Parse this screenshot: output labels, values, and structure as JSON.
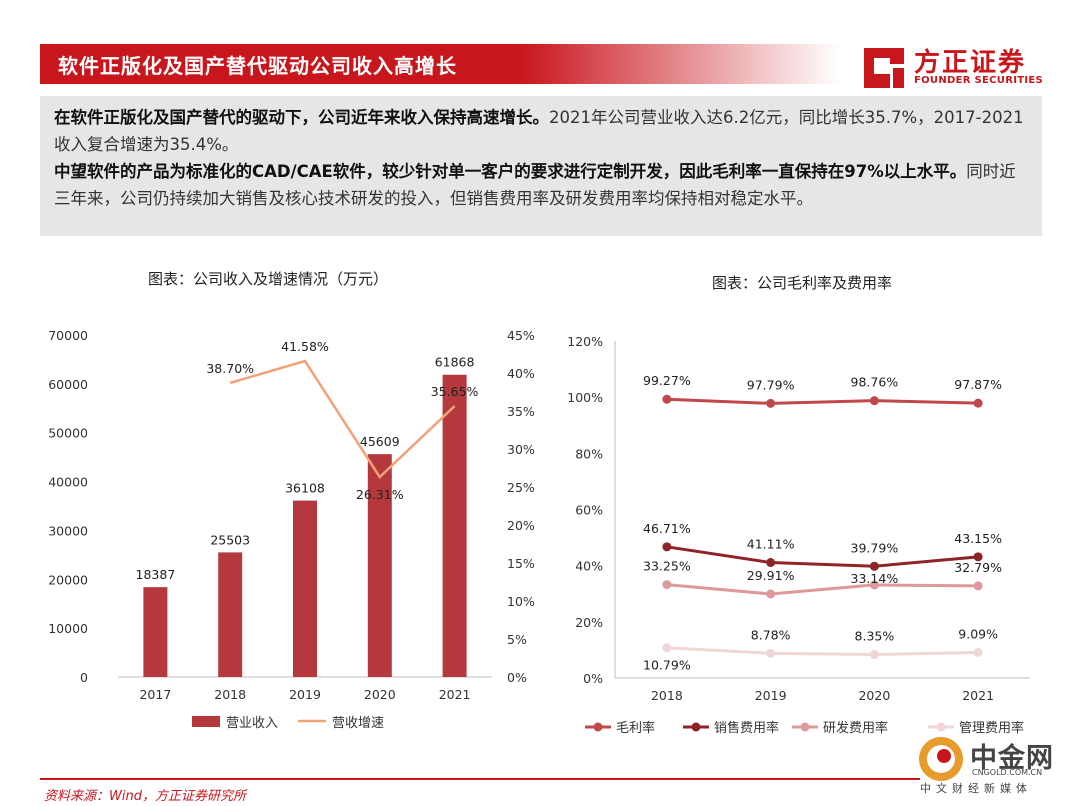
{
  "header": {
    "title": "软件正版化及国产替代驱动公司收入高增长",
    "brand_cn": "方正证券",
    "brand_en": "FOUNDER SECURITIES"
  },
  "summary": {
    "p1_bold": "在软件正版化及国产替代的驱动下，公司近年来收入保持高速增长。",
    "p1_rest": "2021年公司营业收入达6.2亿元，同比增长35.7%，2017-2021收入复合增速为35.4%。",
    "p2_bold": "中望软件的产品为标准化的CAD/CAE软件，较少针对单一客户的要求进行定制开发，因此毛利率一直保持在97%以上水平。",
    "p2_rest": "同时近三年来，公司仍持续加大销售及核心技术研发的投入，但销售费用率及研发费用率均保持相对稳定水平。"
  },
  "chart_data": [
    {
      "type": "bar",
      "title": "图表：公司收入及增速情况（万元）",
      "categories": [
        "2017",
        "2018",
        "2019",
        "2020",
        "2021"
      ],
      "series": [
        {
          "name": "营业收入",
          "type": "bar",
          "axis": "left",
          "color": "#b5383d",
          "values": [
            18387,
            25503,
            36108,
            45609,
            61868
          ],
          "labels": [
            "18387",
            "25503",
            "36108",
            "45609",
            "61868"
          ]
        },
        {
          "name": "营收增速",
          "type": "line",
          "axis": "right",
          "color": "#f2a27a",
          "values": [
            null,
            38.7,
            41.58,
            26.31,
            35.65
          ],
          "labels": [
            "",
            "38.70%",
            "41.58%",
            "26.31%",
            "35.65%"
          ]
        }
      ],
      "ylim_left": [
        0,
        70000
      ],
      "yticks_left": [
        "0",
        "10000",
        "20000",
        "30000",
        "40000",
        "50000",
        "60000",
        "70000"
      ],
      "ylim_right": [
        0,
        45
      ],
      "yticks_right": [
        "0%",
        "5%",
        "10%",
        "15%",
        "20%",
        "25%",
        "30%",
        "35%",
        "40%",
        "45%"
      ],
      "legend": "bottom",
      "grid": false
    },
    {
      "type": "line",
      "title": "图表：公司毛利率及费用率",
      "categories": [
        "2018",
        "2019",
        "2020",
        "2021"
      ],
      "series": [
        {
          "name": "毛利率",
          "color": "#c0484c",
          "values": [
            99.27,
            97.79,
            98.76,
            97.87
          ],
          "labels": [
            "99.27%",
            "97.79%",
            "98.76%",
            "97.87%"
          ]
        },
        {
          "name": "销售费用率",
          "color": "#8e2328",
          "values": [
            46.71,
            41.11,
            39.79,
            43.15
          ],
          "labels": [
            "46.71%",
            "41.11%",
            "39.79%",
            "43.15%"
          ]
        },
        {
          "name": "研发费用率",
          "color": "#dc9a9c",
          "values": [
            33.25,
            29.91,
            33.14,
            32.79
          ],
          "labels": [
            "33.25%",
            "29.91%",
            "33.14%",
            "32.79%"
          ]
        },
        {
          "name": "管理费用率",
          "color": "#f0d6d6",
          "values": [
            10.79,
            8.78,
            8.35,
            9.09
          ],
          "labels": [
            "10.79%",
            "8.78%",
            "8.35%",
            "9.09%"
          ]
        }
      ],
      "ylim": [
        0,
        120
      ],
      "yticks": [
        "0%",
        "20%",
        "40%",
        "60%",
        "80%",
        "100%",
        "120%"
      ],
      "legend": "bottom",
      "grid": false
    }
  ],
  "footer": {
    "source": "资料来源：Wind，方正证券研究所",
    "watermark_cn": "中金网",
    "watermark_url": "CNGOLD.COM.CN",
    "watermark_sub": "中文财经新媒体"
  }
}
